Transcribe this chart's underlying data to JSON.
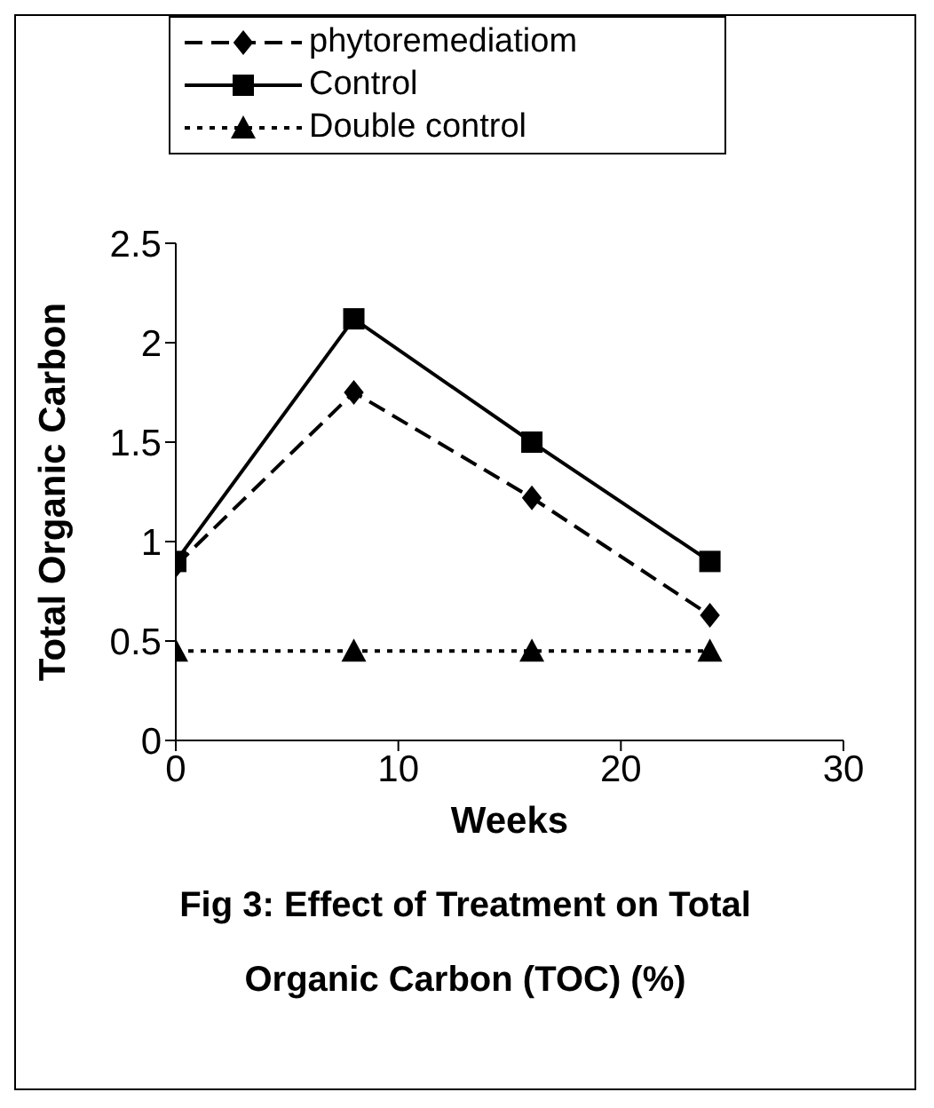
{
  "chart_data": {
    "type": "line",
    "title": "Fig 3: Effect of Treatment on Total Organic Carbon (TOC) (%)",
    "xlabel": "Weeks",
    "ylabel": "Total Organic Carbon",
    "x": [
      0,
      8,
      16,
      24
    ],
    "series": [
      {
        "name": "phytoremediatiom",
        "color": "#000000",
        "values": [
          0.88,
          1.75,
          1.22,
          0.63
        ],
        "marker": "diamond",
        "line_style": "dashed"
      },
      {
        "name": "Control",
        "color": "#000000",
        "values": [
          0.9,
          2.12,
          1.5,
          0.9
        ],
        "marker": "square",
        "line_style": "solid"
      },
      {
        "name": "Double control",
        "color": "#000000",
        "values": [
          0.45,
          0.45,
          0.45,
          0.45
        ],
        "marker": "triangle",
        "line_style": "dotted"
      }
    ],
    "xlim": [
      0,
      30
    ],
    "xticks": [
      0,
      10,
      20,
      30
    ],
    "ylim": [
      0,
      2.5
    ],
    "yticks": [
      0,
      0.5,
      1,
      1.5,
      2,
      2.5
    ],
    "grid": false,
    "legend": "top"
  }
}
